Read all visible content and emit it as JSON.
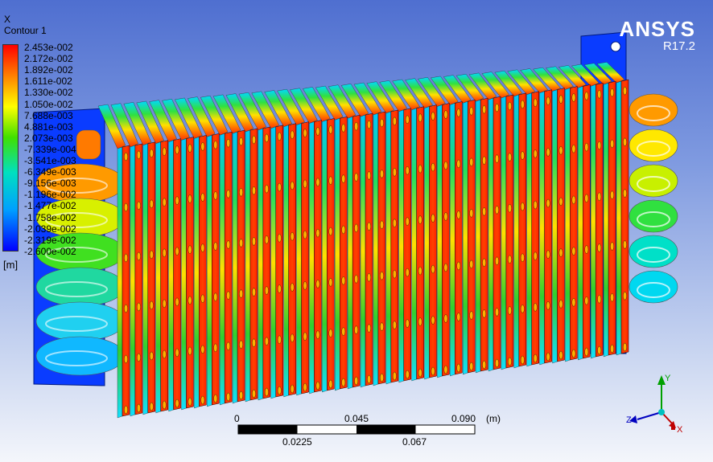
{
  "legend": {
    "variable": "X",
    "contour_name": "Contour 1",
    "units": "[m]",
    "levels": [
      "2.453e-002",
      "2.172e-002",
      "1.892e-002",
      "1.611e-002",
      "1.330e-002",
      "1.050e-002",
      "7.688e-003",
      "4.881e-003",
      "2.073e-003",
      "-7.339e-004",
      "-3.541e-003",
      "-6.349e-003",
      "-9.156e-003",
      "-1.196e-002",
      "-1.477e-002",
      "-1.758e-002",
      "-2.039e-002",
      "-2.319e-002",
      "-2.600e-002"
    ]
  },
  "brand": {
    "logo": "ANSYS",
    "version": "R17.2"
  },
  "scale_bar": {
    "top_labels": [
      "0",
      "0.045",
      "0.090"
    ],
    "bottom_labels": [
      "0.0225",
      "0.067"
    ],
    "unit": "(m)"
  },
  "triad": {
    "x": "X",
    "y": "Y",
    "z": "Z"
  },
  "colors": {
    "red": "#ff1e00",
    "orange": "#ff8a00",
    "yellow": "#f3f300",
    "green": "#21d421",
    "cyan": "#00e0e0",
    "blue": "#0040ff"
  },
  "model": {
    "fin_count": 40,
    "tube_rows": 6
  }
}
